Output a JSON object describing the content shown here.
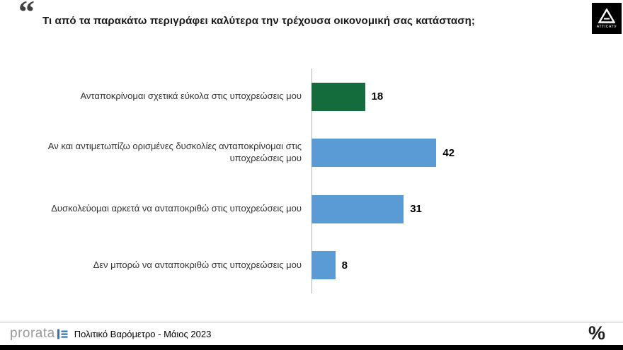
{
  "header": {
    "quote_mark": "“"
  },
  "logos": {
    "attica_label": "ATTICATV"
  },
  "chart_data": {
    "type": "bar",
    "orientation": "horizontal",
    "title": "Τι από τα παρακάτω περιγράφει καλύτερα την τρέχουσα οικονομική σας κατάσταση;",
    "categories": [
      "Ανταποκρίνομαι σχετικά εύκολα στις υποχρεώσεις μου",
      "Αν και αντιμετωπίζω ορισμένες δυσκολίες ανταποκρίνομαι στις υποχρεώσεις μου",
      "Δυσκολεύομαι αρκετά να ανταποκριθώ στις υποχρεώσεις μου",
      "Δεν μπορώ να ανταποκριθώ στις υποχρεώσεις μου"
    ],
    "values": [
      18,
      42,
      31,
      8
    ],
    "colors": [
      "#146c3c",
      "#5b9bd5",
      "#5b9bd5",
      "#5b9bd5"
    ],
    "value_labels_shown": true,
    "xlim": [
      0,
      100
    ],
    "grid": false,
    "legend": false
  },
  "footer": {
    "brand": "prorata",
    "caption": "Πολιτικό Βαρόμετρο - Μάιος 2023",
    "percent_mark": "%"
  }
}
